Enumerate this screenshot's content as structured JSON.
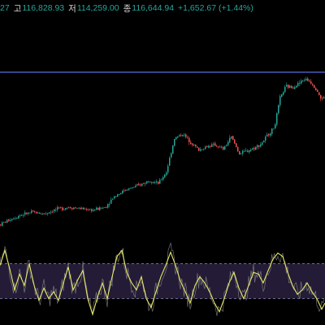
{
  "header": {
    "open_value_partial": "27",
    "high_label": "고",
    "high_value": "116,828.93",
    "low_label": "저",
    "low_value": "114,259.00",
    "close_label": "종",
    "close_value": "116,644.94",
    "change": "+1,652.67 (+1.44%)"
  },
  "colors": {
    "background": "#000000",
    "up": "#26a69a",
    "down": "#ef5350",
    "reference_line": "#5b6ee1",
    "oscillator_line": "#e6e86a",
    "oscillator_band_fill": "#2a2140",
    "oscillator_band_border": "#8a8aa0"
  },
  "chart_data": [
    {
      "type": "candlestick",
      "price_anchors": [
        [
          0,
          96500
        ],
        [
          12,
          97200
        ],
        [
          25,
          97800
        ],
        [
          40,
          98200
        ],
        [
          55,
          98000
        ],
        [
          70,
          98600
        ],
        [
          85,
          98900
        ],
        [
          100,
          98700
        ],
        [
          115,
          98500
        ],
        [
          130,
          98900
        ],
        [
          140,
          100300
        ],
        [
          155,
          101300
        ],
        [
          170,
          101800
        ],
        [
          185,
          102600
        ],
        [
          195,
          102100
        ],
        [
          205,
          103700
        ],
        [
          215,
          108300
        ],
        [
          225,
          108900
        ],
        [
          235,
          107800
        ],
        [
          245,
          106700
        ],
        [
          255,
          107200
        ],
        [
          265,
          107400
        ],
        [
          275,
          106800
        ],
        [
          285,
          108500
        ],
        [
          295,
          106200
        ],
        [
          305,
          106600
        ],
        [
          315,
          107100
        ],
        [
          322,
          107600
        ],
        [
          330,
          108800
        ],
        [
          338,
          109800
        ],
        [
          345,
          113800
        ],
        [
          352,
          115400
        ],
        [
          360,
          115300
        ],
        [
          368,
          115800
        ],
        [
          375,
          116400
        ],
        [
          382,
          116100
        ],
        [
          390,
          115000
        ],
        [
          396,
          113500
        ],
        [
          400,
          114200
        ]
      ],
      "reference_line_value": 117350,
      "ylim": [
        95000,
        125000
      ]
    },
    {
      "type": "line",
      "oscillator_range": [
        0,
        100
      ],
      "band": [
        30,
        70
      ],
      "oscillator_anchors": [
        [
          0,
          68
        ],
        [
          6,
          85
        ],
        [
          12,
          64
        ],
        [
          18,
          40
        ],
        [
          24,
          58
        ],
        [
          30,
          45
        ],
        [
          36,
          70
        ],
        [
          42,
          45
        ],
        [
          48,
          28
        ],
        [
          54,
          42
        ],
        [
          60,
          30
        ],
        [
          66,
          38
        ],
        [
          72,
          28
        ],
        [
          78,
          48
        ],
        [
          84,
          66
        ],
        [
          90,
          40
        ],
        [
          96,
          52
        ],
        [
          102,
          62
        ],
        [
          108,
          30
        ],
        [
          114,
          12
        ],
        [
          120,
          32
        ],
        [
          126,
          48
        ],
        [
          132,
          30
        ],
        [
          138,
          55
        ],
        [
          144,
          78
        ],
        [
          150,
          85
        ],
        [
          156,
          60
        ],
        [
          162,
          48
        ],
        [
          168,
          40
        ],
        [
          174,
          55
        ],
        [
          180,
          30
        ],
        [
          186,
          20
        ],
        [
          192,
          38
        ],
        [
          198,
          55
        ],
        [
          204,
          68
        ],
        [
          210,
          83
        ],
        [
          216,
          68
        ],
        [
          222,
          50
        ],
        [
          228,
          38
        ],
        [
          234,
          25
        ],
        [
          240,
          45
        ],
        [
          246,
          55
        ],
        [
          252,
          48
        ],
        [
          258,
          38
        ],
        [
          264,
          25
        ],
        [
          270,
          15
        ],
        [
          276,
          30
        ],
        [
          282,
          48
        ],
        [
          288,
          60
        ],
        [
          294,
          42
        ],
        [
          300,
          30
        ],
        [
          306,
          45
        ],
        [
          312,
          60
        ],
        [
          318,
          58
        ],
        [
          324,
          48
        ],
        [
          330,
          62
        ],
        [
          336,
          75
        ],
        [
          342,
          82
        ],
        [
          348,
          78
        ],
        [
          354,
          60
        ],
        [
          360,
          45
        ],
        [
          366,
          35
        ],
        [
          372,
          40
        ],
        [
          378,
          48
        ],
        [
          384,
          38
        ],
        [
          390,
          30
        ],
        [
          396,
          18
        ],
        [
          400,
          25
        ]
      ]
    }
  ]
}
